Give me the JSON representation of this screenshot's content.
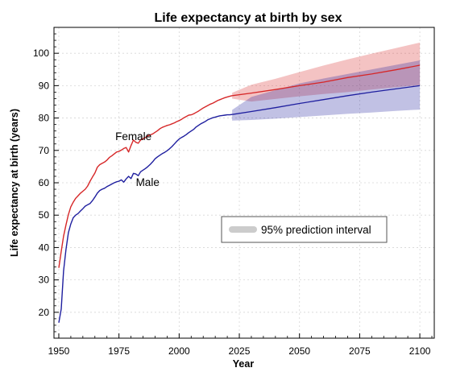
{
  "chart_data": {
    "type": "line",
    "title": "Life expectancy at birth by sex",
    "xlabel": "Year",
    "ylabel": "Life expectancy at birth (years)",
    "xlim": [
      1948,
      2106
    ],
    "ylim": [
      12,
      108
    ],
    "x_ticks": [
      1950,
      1975,
      2000,
      2025,
      2050,
      2075,
      2100
    ],
    "y_ticks": [
      20,
      30,
      40,
      50,
      60,
      70,
      80,
      90,
      100
    ],
    "grid": true,
    "legend": {
      "label": "95% prediction interval",
      "color": "#cccccc",
      "placement": "center-right"
    },
    "series": [
      {
        "name": "Female",
        "color": "#d62728",
        "observed": {
          "x": [
            1950,
            1951,
            1952,
            1953,
            1954,
            1955,
            1956,
            1957,
            1958,
            1959,
            1960,
            1961,
            1962,
            1963,
            1964,
            1965,
            1966,
            1967,
            1968,
            1969,
            1970,
            1971,
            1972,
            1973,
            1974,
            1975,
            1976,
            1977,
            1978,
            1979,
            1980,
            1981,
            1982,
            1983,
            1984,
            1985,
            1986,
            1987,
            1988,
            1989,
            1990,
            1991,
            1992,
            1993,
            1994,
            1995,
            1996,
            1997,
            1998,
            1999,
            2000,
            2001,
            2002,
            2003,
            2004,
            2005,
            2006,
            2007,
            2008,
            2009,
            2010,
            2011,
            2012,
            2013,
            2014,
            2015,
            2016,
            2017,
            2018,
            2019,
            2020,
            2021,
            2022
          ],
          "y": [
            33.7,
            38.8,
            43.5,
            47,
            50.2,
            52.6,
            54,
            55.2,
            56,
            56.8,
            57.4,
            58,
            59,
            60.5,
            61.8,
            63,
            64.8,
            65.6,
            66,
            66.4,
            67,
            67.8,
            68.3,
            68.9,
            69.5,
            69.7,
            70.1,
            70.6,
            70.9,
            69.5,
            71.5,
            73.2,
            72.5,
            72.2,
            73.2,
            73.6,
            74,
            74.5,
            74.8,
            75.1,
            75.6,
            76.1,
            76.7,
            77.1,
            77.4,
            77.7,
            77.9,
            78.2,
            78.5,
            78.9,
            79.2,
            79.6,
            80.1,
            80.5,
            80.9,
            81,
            81.3,
            81.7,
            82.1,
            82.6,
            83.1,
            83.5,
            83.9,
            84.3,
            84.6,
            85,
            85.4,
            85.7,
            86,
            86.3,
            86.5,
            86.7,
            86.9
          ]
        },
        "projection": {
          "x": [
            2022,
            2030,
            2040,
            2050,
            2060,
            2070,
            2080,
            2090,
            2100
          ],
          "y": [
            86.9,
            87.7,
            88.8,
            90,
            91.1,
            92.5,
            93.6,
            94.9,
            96.3
          ]
        },
        "interval": {
          "x": [
            2022,
            2030,
            2040,
            2050,
            2060,
            2070,
            2080,
            2090,
            2100
          ],
          "lower": [
            86,
            85.1,
            85.9,
            86.7,
            87.4,
            88,
            88.8,
            89.5,
            90.2
          ],
          "upper": [
            87.8,
            90.3,
            92.1,
            94.2,
            96.2,
            98.1,
            99.9,
            101.6,
            103.3
          ]
        }
      },
      {
        "name": "Male",
        "color": "#1f1f9f",
        "observed": {
          "x": [
            1950,
            1951,
            1952,
            1953,
            1954,
            1955,
            1956,
            1957,
            1958,
            1959,
            1960,
            1961,
            1962,
            1963,
            1964,
            1965,
            1966,
            1967,
            1968,
            1969,
            1970,
            1971,
            1972,
            1973,
            1974,
            1975,
            1976,
            1977,
            1978,
            1979,
            1980,
            1981,
            1982,
            1983,
            1984,
            1985,
            1986,
            1987,
            1988,
            1989,
            1990,
            1991,
            1992,
            1993,
            1994,
            1995,
            1996,
            1997,
            1998,
            1999,
            2000,
            2001,
            2002,
            2003,
            2004,
            2005,
            2006,
            2007,
            2008,
            2009,
            2010,
            2011,
            2012,
            2013,
            2014,
            2015,
            2016,
            2017,
            2018,
            2019,
            2020,
            2021,
            2022
          ],
          "y": [
            16.8,
            21,
            32.8,
            39.4,
            44.6,
            47.3,
            49.2,
            50,
            50.5,
            51.3,
            52,
            52.8,
            53.2,
            53.6,
            54.5,
            55.6,
            56.8,
            57.6,
            58,
            58.3,
            58.8,
            59.2,
            59.6,
            60,
            60.3,
            60.5,
            60.9,
            60.2,
            61.2,
            62,
            61.3,
            62.9,
            62.7,
            62.2,
            63.4,
            63.9,
            64.4,
            65,
            65.7,
            66.5,
            67.4,
            68,
            68.5,
            69,
            69.4,
            69.9,
            70.5,
            71.2,
            72,
            72.8,
            73.5,
            74,
            74.4,
            74.9,
            75.5,
            76,
            76.5,
            77.2,
            77.7,
            78.2,
            78.6,
            79,
            79.5,
            79.8,
            80.1,
            80.3,
            80.5,
            80.7,
            80.8,
            80.9,
            81,
            81,
            81.1
          ]
        },
        "projection": {
          "x": [
            2022,
            2030,
            2040,
            2050,
            2060,
            2070,
            2080,
            2090,
            2100
          ],
          "y": [
            81.1,
            82,
            83.2,
            84.5,
            85.7,
            86.9,
            88,
            89,
            90
          ]
        },
        "interval": {
          "x": [
            2022,
            2030,
            2040,
            2050,
            2060,
            2070,
            2080,
            2090,
            2100
          ],
          "lower": [
            79.2,
            79.4,
            79.8,
            80.3,
            80.8,
            81.3,
            81.7,
            82.2,
            82.6
          ],
          "upper": [
            82.5,
            86.5,
            88.6,
            90.7,
            92.2,
            93.6,
            95,
            96.4,
            97.8
          ]
        }
      }
    ]
  }
}
